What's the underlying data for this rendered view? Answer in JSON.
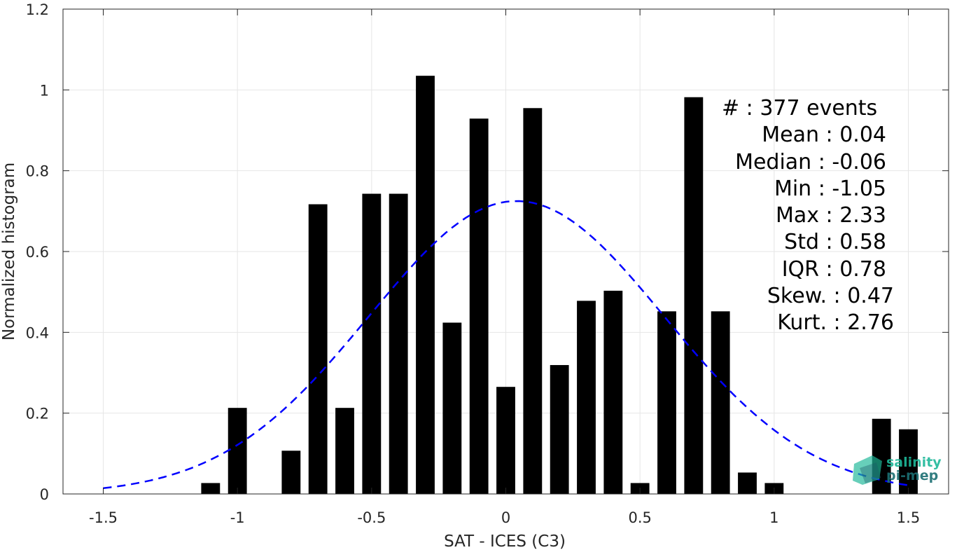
{
  "chart_data": {
    "type": "bar",
    "xlabel": "SAT - ICES (C3)",
    "ylabel": "Normalized histogram",
    "xlim": [
      -1.65,
      1.65
    ],
    "ylim": [
      0,
      1.2
    ],
    "xticks": [
      -1.5,
      -1,
      -0.5,
      0,
      0.5,
      1,
      1.5
    ],
    "xtick_labels": [
      "-1.5",
      "-1",
      "-0.5",
      "0",
      "0.5",
      "1",
      "1.5"
    ],
    "yticks": [
      0,
      0.2,
      0.4,
      0.6,
      0.8,
      1,
      1.2
    ],
    "ytick_labels": [
      "0",
      "0.2",
      "0.4",
      "0.6",
      "0.8",
      "1",
      "1.2"
    ],
    "grid": true,
    "bar_width": 0.07,
    "bars": [
      {
        "x": -1.1,
        "y": 0.027
      },
      {
        "x": -1.0,
        "y": 0.213
      },
      {
        "x": -0.8,
        "y": 0.107
      },
      {
        "x": -0.7,
        "y": 0.717
      },
      {
        "x": -0.5,
        "y": 0.743
      },
      {
        "x": -0.4,
        "y": 0.743
      },
      {
        "x": -0.6,
        "y": 0.213
      },
      {
        "x": -0.3,
        "y": 1.035
      },
      {
        "x": -0.2,
        "y": 0.424
      },
      {
        "x": -0.1,
        "y": 0.929
      },
      {
        "x": 0.0,
        "y": 0.265
      },
      {
        "x": 0.1,
        "y": 0.955
      },
      {
        "x": 0.2,
        "y": 0.319
      },
      {
        "x": 0.3,
        "y": 0.478
      },
      {
        "x": 0.4,
        "y": 0.503
      },
      {
        "x": 0.5,
        "y": 0.027
      },
      {
        "x": 0.6,
        "y": 0.452
      },
      {
        "x": 0.7,
        "y": 0.982
      },
      {
        "x": 0.8,
        "y": 0.452
      },
      {
        "x": 0.9,
        "y": 0.053
      },
      {
        "x": 1.0,
        "y": 0.027
      },
      {
        "x": 1.4,
        "y": 0.186
      },
      {
        "x": 1.5,
        "y": 0.16
      }
    ],
    "fit_curve": {
      "style": "dashed",
      "color": "#0000ff",
      "mean": 0.04,
      "std": 0.55,
      "peak": 0.725,
      "x_range": [
        -1.5,
        1.5
      ]
    },
    "bar_color": "#000000"
  },
  "stats": {
    "count_line": "#  : 377 events",
    "lines": [
      "Mean : 0.04",
      "Median : -0.06",
      "Min : -1.05",
      "Max : 2.33",
      "Std : 0.58",
      "IQR : 0.78",
      "Skew. : 0.47",
      "Kurt. : 2.76"
    ]
  },
  "logo": {
    "line1": "salinity",
    "line2": "pi-mep",
    "color1": "#1fb89a",
    "color2": "#1c6f73"
  }
}
